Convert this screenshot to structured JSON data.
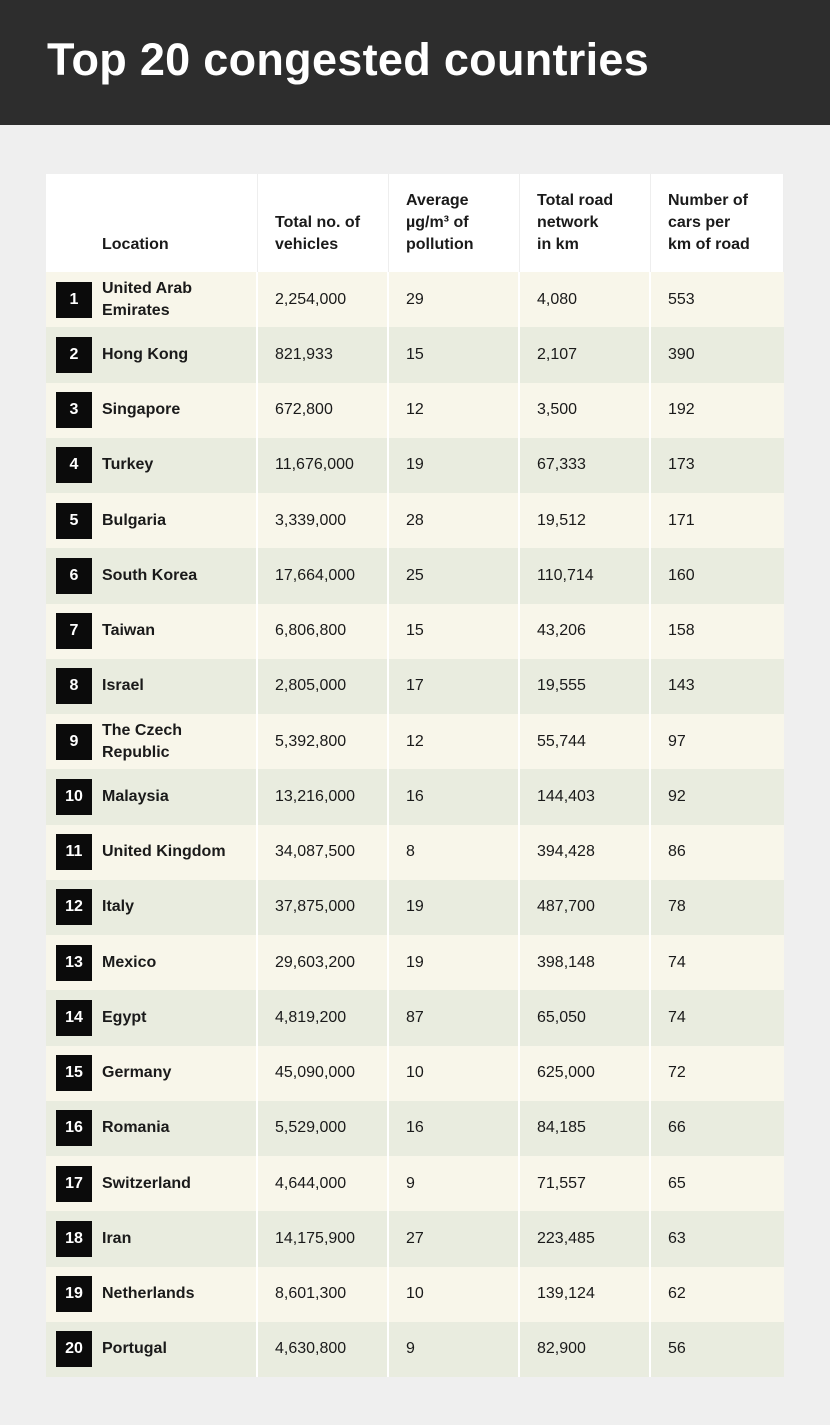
{
  "header": {
    "title": "Top 20 congested countries"
  },
  "table": {
    "columns": [
      [
        "Location"
      ],
      [
        "Total no. of",
        "vehicles"
      ],
      [
        "Average",
        "µg/m³ of",
        "pollution"
      ],
      [
        "Total road",
        "network",
        "in km"
      ],
      [
        "Number of",
        "cars per",
        "km of road"
      ]
    ],
    "rows": [
      [
        "1",
        "United Arab Emirates",
        "2,254,000",
        "29",
        "4,080",
        "553"
      ],
      [
        "2",
        "Hong Kong",
        "821,933",
        "15",
        "2,107",
        "390"
      ],
      [
        "3",
        "Singapore",
        "672,800",
        "12",
        "3,500",
        "192"
      ],
      [
        "4",
        "Turkey",
        "11,676,000",
        "19",
        "67,333",
        "173"
      ],
      [
        "5",
        "Bulgaria",
        "3,339,000",
        "28",
        "19,512",
        "171"
      ],
      [
        "6",
        "South Korea",
        "17,664,000",
        "25",
        "110,714",
        "160"
      ],
      [
        "7",
        "Taiwan",
        "6,806,800",
        "15",
        "43,206",
        "158"
      ],
      [
        "8",
        "Israel",
        "2,805,000",
        "17",
        "19,555",
        "143"
      ],
      [
        "9",
        "The Czech Republic",
        "5,392,800",
        "12",
        "55,744",
        "97"
      ],
      [
        "10",
        "Malaysia",
        "13,216,000",
        "16",
        "144,403",
        "92"
      ],
      [
        "11",
        "United Kingdom",
        "34,087,500",
        "8",
        "394,428",
        "86"
      ],
      [
        "12",
        "Italy",
        "37,875,000",
        "19",
        "487,700",
        "78"
      ],
      [
        "13",
        "Mexico",
        "29,603,200",
        "19",
        "398,148",
        "74"
      ],
      [
        "14",
        "Egypt",
        "4,819,200",
        "87",
        "65,050",
        "74"
      ],
      [
        "15",
        "Germany",
        "45,090,000",
        "10",
        "625,000",
        "72"
      ],
      [
        "16",
        "Romania",
        "5,529,000",
        "16",
        "84,185",
        "66"
      ],
      [
        "17",
        "Switzerland",
        "4,644,000",
        "9",
        "71,557",
        "65"
      ],
      [
        "18",
        "Iran",
        "14,175,900",
        "27",
        "223,485",
        "63"
      ],
      [
        "19",
        "Netherlands",
        "8,601,300",
        "10",
        "139,124",
        "62"
      ],
      [
        "20",
        "Portugal",
        "4,630,800",
        "9",
        "82,900",
        "56"
      ]
    ]
  }
}
